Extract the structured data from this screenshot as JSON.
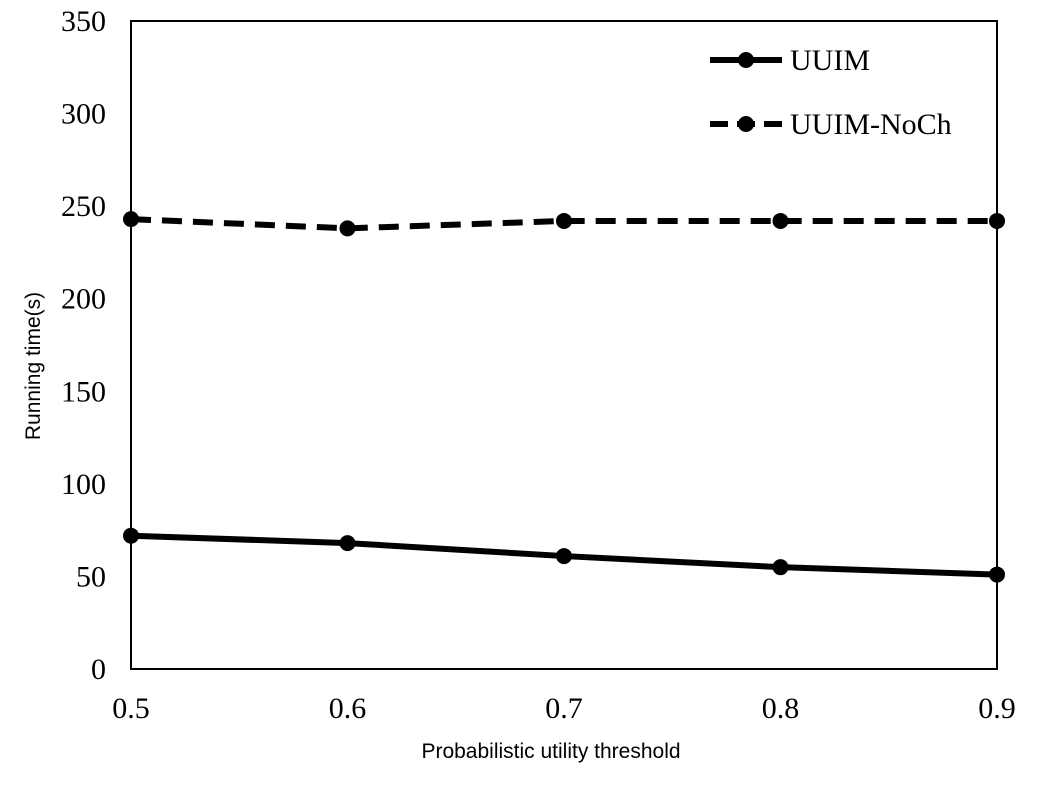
{
  "chart_data": {
    "type": "line",
    "title": "",
    "xlabel": "Probabilistic utility threshold",
    "ylabel": "Running time(s)",
    "x": [
      0.5,
      0.6,
      0.7,
      0.8,
      0.9
    ],
    "x_tick_labels": [
      "0.5",
      "0.6",
      "0.7",
      "0.8",
      "0.9"
    ],
    "xlim": [
      0.5,
      0.9
    ],
    "ylim": [
      0,
      350
    ],
    "y_ticks": [
      0,
      50,
      100,
      150,
      200,
      250,
      300,
      350
    ],
    "y_tick_labels": [
      "0",
      "50",
      "100",
      "150",
      "200",
      "250",
      "300",
      "350"
    ],
    "grid": false,
    "legend_position": "top-right",
    "series": [
      {
        "name": "UUIM",
        "values": [
          72,
          68,
          61,
          55,
          51
        ],
        "line_style": "solid",
        "marker": "circle",
        "color": "#000000"
      },
      {
        "name": "UUIM-NoCh",
        "values": [
          243,
          238,
          242,
          242,
          242
        ],
        "line_style": "dashed",
        "marker": "circle",
        "color": "#000000"
      }
    ]
  }
}
